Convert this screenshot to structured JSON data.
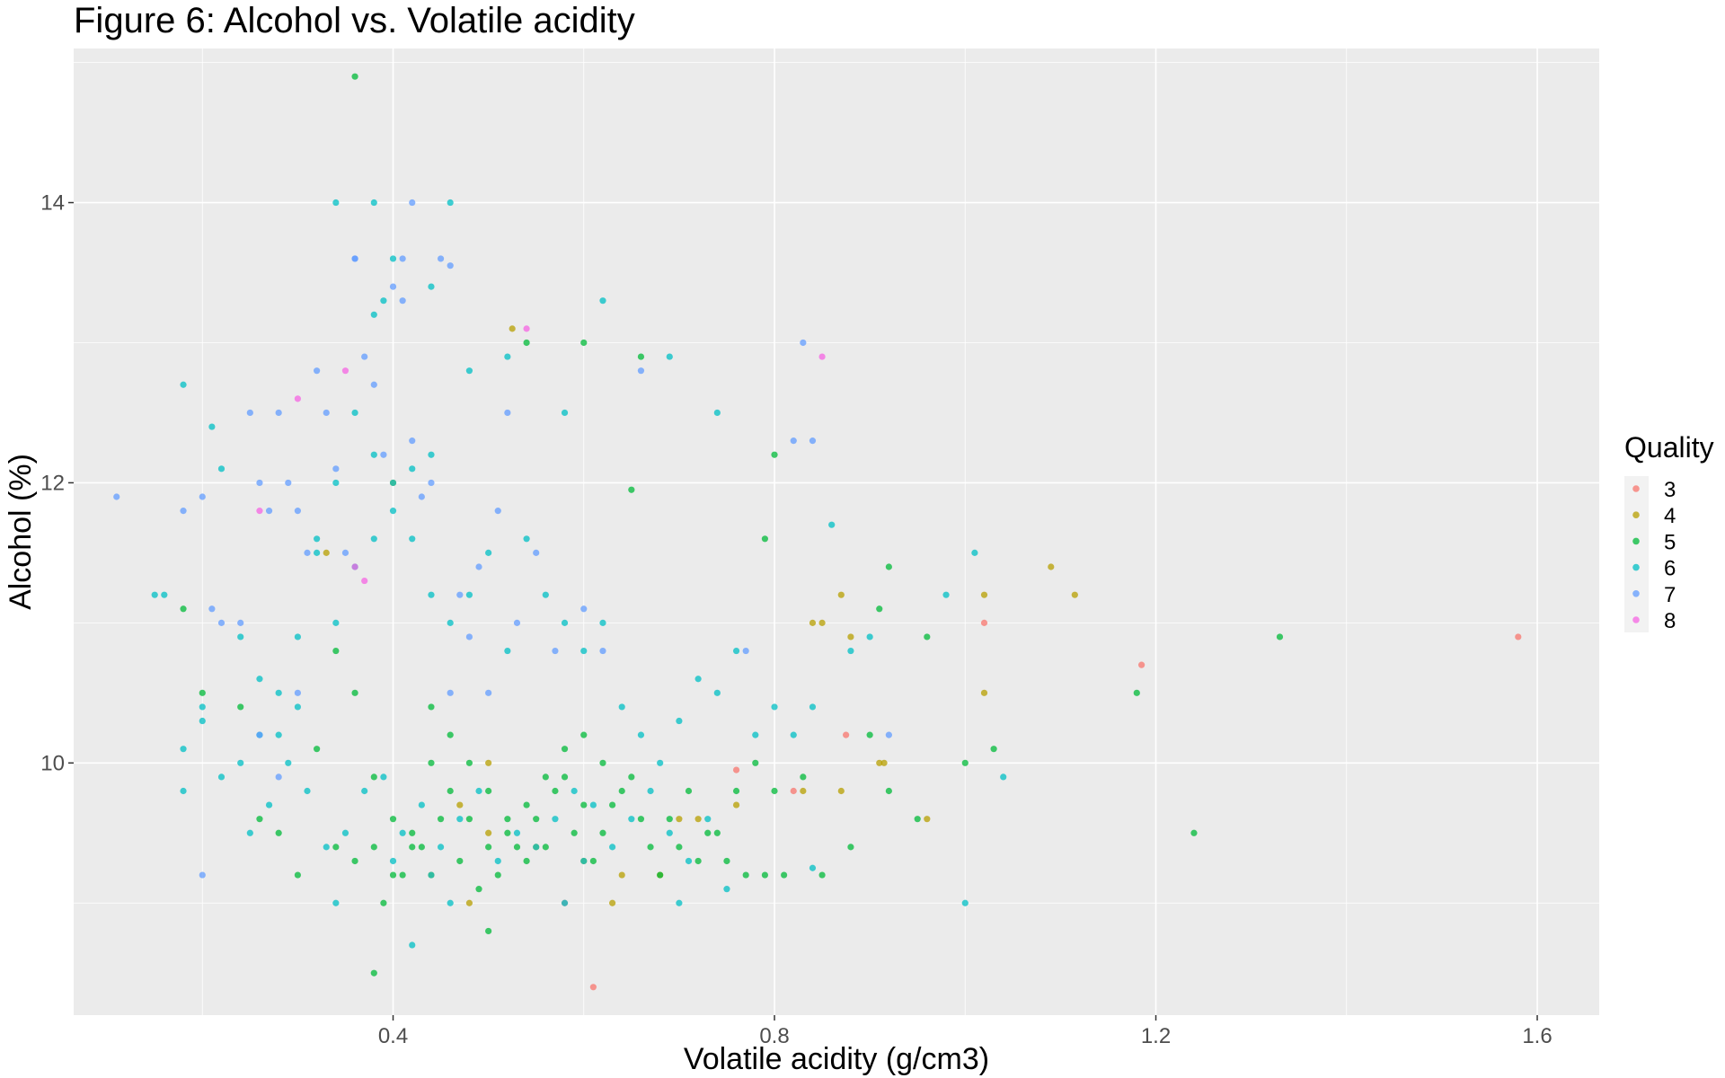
{
  "chart_data": {
    "type": "scatter",
    "title": "Figure 6: Alcohol vs. Volatile acidity",
    "xlabel": "Volatile acidity (g/cm3)",
    "ylabel": "Alcohol (%)",
    "xlim": [
      0.065,
      1.665
    ],
    "ylim": [
      8.2,
      15.1
    ],
    "x_ticks": [
      0.4,
      0.8,
      1.2,
      1.6
    ],
    "x_tick_labels": [
      "0.4",
      "0.8",
      "1.2",
      "1.6"
    ],
    "y_ticks": [
      10,
      12,
      14
    ],
    "y_tick_labels": [
      "10",
      "12",
      "14"
    ],
    "grid": true,
    "legend": {
      "title": "Quality",
      "position": "right"
    },
    "series": [
      {
        "name": "3",
        "color": "#F8766D",
        "x": [
          1.58,
          1.185,
          1.02,
          0.875,
          0.76,
          0.82,
          0.61,
          0.58
        ],
        "y": [
          10.9,
          10.7,
          11.0,
          10.2,
          9.95,
          9.8,
          8.4,
          9.0
        ]
      },
      {
        "name": "4",
        "color": "#B79F00",
        "x": [
          0.525,
          0.4,
          0.5,
          0.33,
          0.87,
          1.09,
          1.115,
          1.02,
          1.02,
          0.85,
          0.84,
          0.88,
          0.91,
          0.915,
          0.87,
          0.83,
          0.96,
          0.76,
          0.72,
          0.7,
          0.64,
          0.6,
          0.55,
          0.48,
          0.47,
          0.44,
          0.63,
          0.68,
          0.5
        ],
        "y": [
          13.1,
          12.0,
          10.0,
          11.5,
          11.2,
          11.4,
          11.2,
          11.2,
          10.5,
          11.0,
          11.0,
          10.9,
          10.0,
          10.0,
          9.8,
          9.8,
          9.6,
          9.7,
          9.6,
          9.6,
          9.2,
          9.3,
          9.4,
          9.0,
          9.7,
          9.2,
          9.0,
          9.2,
          9.5
        ]
      },
      {
        "name": "5",
        "color": "#00BA38",
        "x": [
          0.36,
          0.6,
          0.54,
          0.8,
          0.66,
          0.65,
          0.79,
          0.92,
          0.91,
          1.33,
          1.18,
          1.24,
          0.96,
          1.0,
          1.03,
          0.95,
          0.92,
          0.9,
          0.88,
          0.85,
          0.83,
          0.8,
          0.78,
          0.76,
          0.74,
          0.72,
          0.7,
          0.68,
          0.66,
          0.64,
          0.62,
          0.6,
          0.58,
          0.56,
          0.54,
          0.52,
          0.5,
          0.48,
          0.46,
          0.44,
          0.42,
          0.4,
          0.38,
          0.36,
          0.34,
          0.32,
          0.3,
          0.28,
          0.26,
          0.24,
          0.2,
          0.18,
          0.38,
          0.5,
          0.39,
          0.41,
          0.43,
          0.45,
          0.47,
          0.49,
          0.51,
          0.53,
          0.55,
          0.57,
          0.59,
          0.61,
          0.63,
          0.65,
          0.67,
          0.69,
          0.71,
          0.73,
          0.75,
          0.77,
          0.79,
          0.81,
          0.6,
          0.62,
          0.58,
          0.56,
          0.54,
          0.52,
          0.5,
          0.48,
          0.46,
          0.44,
          0.42,
          0.4,
          0.38,
          0.36,
          0.34
        ],
        "y": [
          14.9,
          13.0,
          13.0,
          12.2,
          12.9,
          11.95,
          11.6,
          11.4,
          11.1,
          10.9,
          10.5,
          9.5,
          10.9,
          10.0,
          10.1,
          9.6,
          9.8,
          10.2,
          9.4,
          9.2,
          9.9,
          9.8,
          10.0,
          9.8,
          9.5,
          9.3,
          9.4,
          9.2,
          9.6,
          9.8,
          9.5,
          9.7,
          9.9,
          9.4,
          9.3,
          9.6,
          9.8,
          10.0,
          10.2,
          10.4,
          9.5,
          9.2,
          9.9,
          10.5,
          10.8,
          10.1,
          9.2,
          9.5,
          9.6,
          10.4,
          10.5,
          11.1,
          8.5,
          8.8,
          9.0,
          9.2,
          9.4,
          9.6,
          9.3,
          9.1,
          9.2,
          9.4,
          9.6,
          9.8,
          9.5,
          9.3,
          9.7,
          9.9,
          9.4,
          9.6,
          9.8,
          9.5,
          9.3,
          9.2,
          9.2,
          9.2,
          10.2,
          10.0,
          10.1,
          9.9,
          9.7,
          9.5,
          9.4,
          9.6,
          9.8,
          10.0,
          9.4,
          9.6,
          9.4,
          9.3,
          9.4
        ]
      },
      {
        "name": "6",
        "color": "#00BFC4",
        "x": [
          0.34,
          0.38,
          0.46,
          0.4,
          0.44,
          0.39,
          0.38,
          0.62,
          0.18,
          0.21,
          0.22,
          0.15,
          0.16,
          0.18,
          0.2,
          0.24,
          0.26,
          0.28,
          0.3,
          0.32,
          0.34,
          0.36,
          0.38,
          0.4,
          0.42,
          0.44,
          0.46,
          0.48,
          0.5,
          0.52,
          0.54,
          0.56,
          0.58,
          0.6,
          0.62,
          0.64,
          0.66,
          0.68,
          0.7,
          0.72,
          0.74,
          0.76,
          0.78,
          0.8,
          0.82,
          0.84,
          0.86,
          0.88,
          0.9,
          0.98,
          1.01,
          1.04,
          1.0,
          0.84,
          0.74,
          0.69,
          0.58,
          0.52,
          0.48,
          0.44,
          0.42,
          0.4,
          0.38,
          0.36,
          0.34,
          0.32,
          0.3,
          0.28,
          0.26,
          0.24,
          0.22,
          0.2,
          0.18,
          0.25,
          0.27,
          0.29,
          0.31,
          0.33,
          0.35,
          0.37,
          0.39,
          0.41,
          0.43,
          0.45,
          0.47,
          0.49,
          0.51,
          0.53,
          0.55,
          0.57,
          0.59,
          0.61,
          0.63,
          0.65,
          0.67,
          0.69,
          0.71,
          0.73,
          0.42,
          0.34,
          0.7,
          0.75,
          0.6,
          0.58,
          0.46,
          0.44,
          0.4
        ],
        "y": [
          14.0,
          14.0,
          14.0,
          13.6,
          13.4,
          13.3,
          13.2,
          13.3,
          12.7,
          12.4,
          12.1,
          11.2,
          11.2,
          10.1,
          10.4,
          10.9,
          10.6,
          10.2,
          10.4,
          11.6,
          12.0,
          12.5,
          12.2,
          11.8,
          11.6,
          11.2,
          11.0,
          11.2,
          11.5,
          10.8,
          11.6,
          11.2,
          11.0,
          10.8,
          11.0,
          10.4,
          10.2,
          10.0,
          10.3,
          10.6,
          10.5,
          10.8,
          10.2,
          10.4,
          10.2,
          10.4,
          11.7,
          10.8,
          10.9,
          11.2,
          11.5,
          9.9,
          9.0,
          9.25,
          12.5,
          12.9,
          12.5,
          12.9,
          12.8,
          12.2,
          12.1,
          12.0,
          11.6,
          11.4,
          11.0,
          11.5,
          10.9,
          10.5,
          10.2,
          10.0,
          9.9,
          10.3,
          9.8,
          9.5,
          9.7,
          10.0,
          9.8,
          9.4,
          9.5,
          9.8,
          9.9,
          9.5,
          9.7,
          9.4,
          9.6,
          9.8,
          9.3,
          9.5,
          9.4,
          9.6,
          9.8,
          9.7,
          9.4,
          9.6,
          9.8,
          9.5,
          9.3,
          9.6,
          8.7,
          9.0,
          9.0,
          9.1,
          9.3,
          9.0,
          9.0,
          9.2,
          9.3
        ]
      },
      {
        "name": "7",
        "color": "#619CFF",
        "x": [
          0.11,
          0.18,
          0.2,
          0.21,
          0.22,
          0.24,
          0.25,
          0.26,
          0.27,
          0.28,
          0.29,
          0.3,
          0.31,
          0.32,
          0.33,
          0.34,
          0.35,
          0.36,
          0.37,
          0.38,
          0.39,
          0.4,
          0.41,
          0.42,
          0.43,
          0.44,
          0.45,
          0.46,
          0.47,
          0.48,
          0.49,
          0.5,
          0.51,
          0.52,
          0.53,
          0.55,
          0.57,
          0.6,
          0.62,
          0.66,
          0.82,
          0.83,
          0.84,
          0.77,
          0.92,
          0.36,
          0.42,
          0.46,
          0.41,
          0.2,
          0.28,
          0.3,
          0.26
        ],
        "y": [
          11.9,
          11.8,
          11.9,
          11.1,
          11.0,
          11.0,
          12.5,
          12.0,
          11.8,
          12.5,
          12.0,
          11.8,
          11.5,
          12.8,
          12.5,
          12.1,
          11.5,
          13.6,
          12.9,
          12.7,
          12.2,
          13.4,
          13.3,
          12.3,
          11.9,
          12.0,
          13.6,
          13.55,
          11.2,
          10.9,
          11.4,
          10.5,
          11.8,
          12.5,
          11.0,
          11.5,
          10.8,
          11.1,
          10.8,
          12.8,
          12.3,
          13.0,
          12.3,
          10.8,
          10.2,
          13.6,
          14.0,
          10.5,
          13.6,
          9.2,
          9.9,
          10.5,
          10.2
        ]
      },
      {
        "name": "8",
        "color": "#F564E3",
        "x": [
          0.26,
          0.3,
          0.35,
          0.37,
          0.36,
          0.54,
          0.85
        ],
        "y": [
          11.8,
          12.6,
          12.8,
          11.3,
          11.4,
          13.1,
          12.9
        ]
      }
    ]
  }
}
